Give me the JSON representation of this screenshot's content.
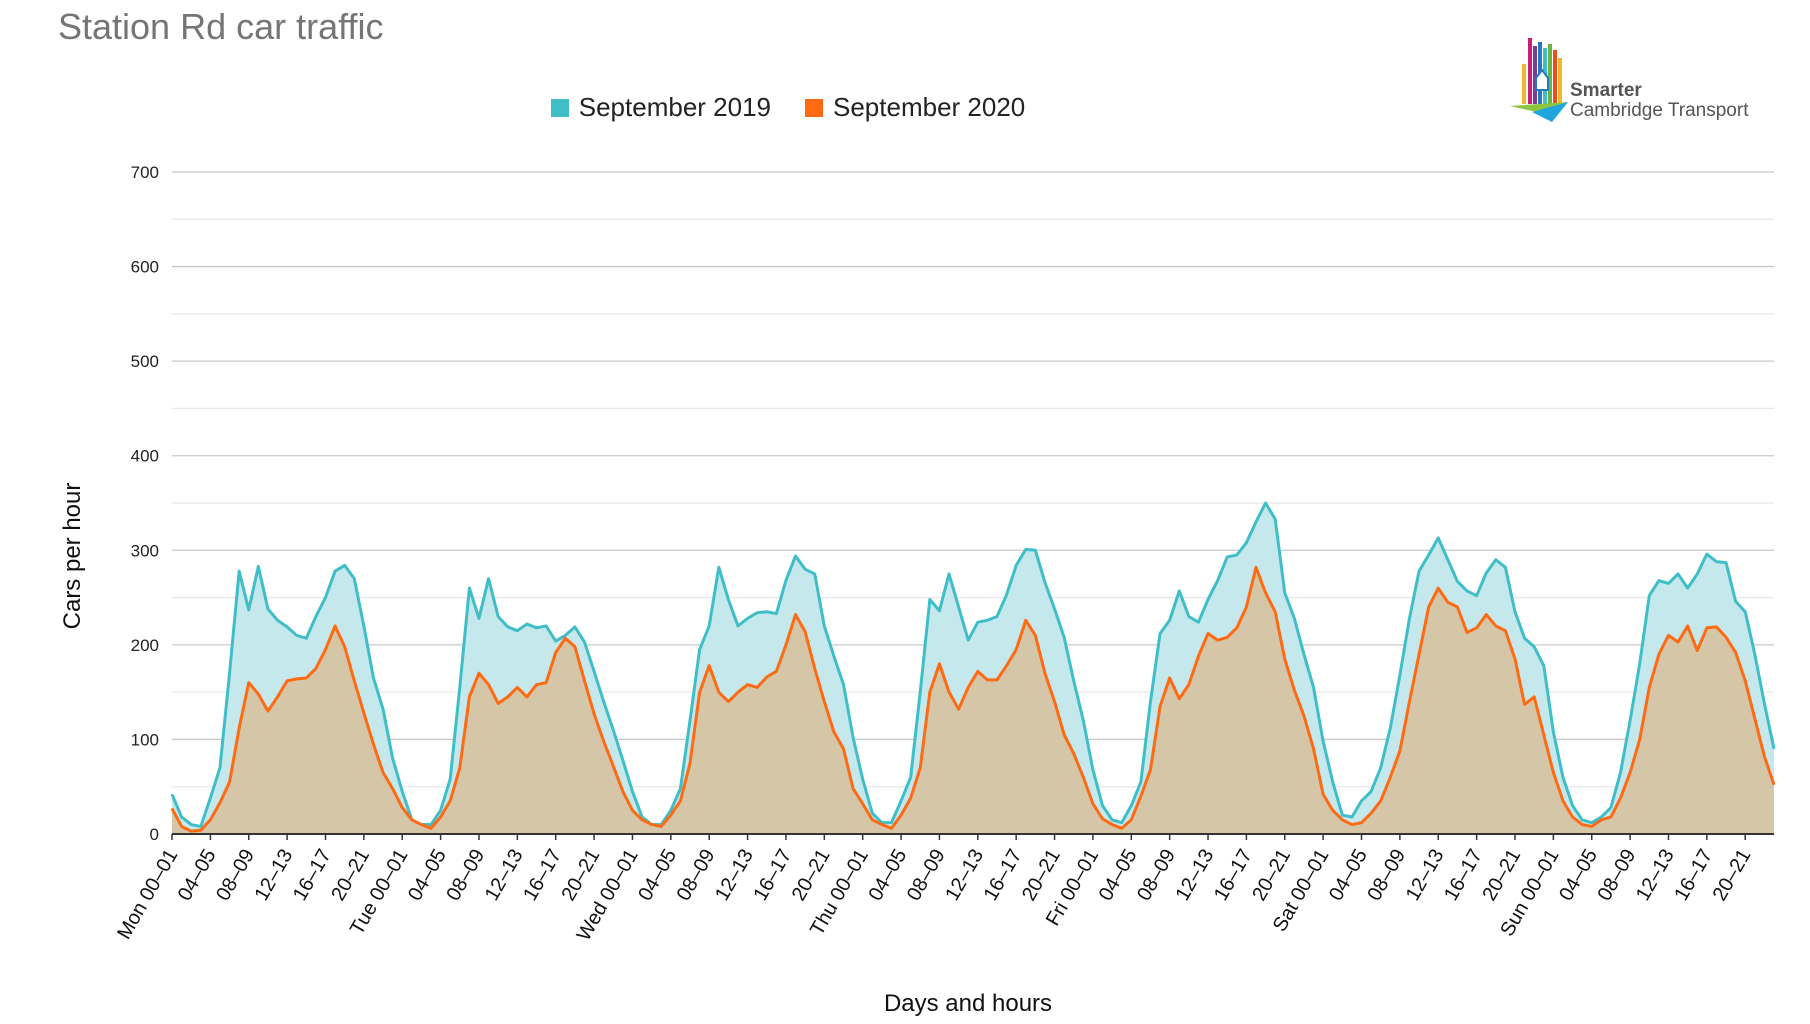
{
  "chart_data": {
    "type": "area",
    "title": "Station Rd car traffic",
    "xlabel": "Days and hours",
    "ylabel": "Cars per hour",
    "ylim": [
      0,
      700
    ],
    "yticks": [
      0,
      100,
      200,
      300,
      400,
      500,
      600,
      700
    ],
    "legend_position": "top-center",
    "grid": true,
    "x_tick_labels": [
      "Mon 00–01",
      "04–05",
      "08–09",
      "12–13",
      "16–17",
      "20–21",
      "Tue 00–01",
      "04–05",
      "08–09",
      "12–13",
      "16–17",
      "20–21",
      "Wed 00–01",
      "04–05",
      "08–09",
      "12–13",
      "16–17",
      "20–21",
      "Thu 00–01",
      "04–05",
      "08–09",
      "12–13",
      "16–17",
      "20–21",
      "Fri 00–01",
      "04–05",
      "08–09",
      "12–13",
      "16–17",
      "20–21",
      "Sat 00–01",
      "04–05",
      "08–09",
      "12–13",
      "16–17",
      "20–21",
      "Sun 00–01",
      "04–05",
      "08–09",
      "12–13",
      "16–17",
      "20–21"
    ],
    "series": [
      {
        "name": "September 2019",
        "color": "#3fbec8",
        "fill": "#c5e8ec",
        "values": [
          42,
          18,
          10,
          8,
          38,
          70,
          170,
          278,
          237,
          283,
          238,
          226,
          219,
          210,
          207,
          230,
          250,
          278,
          284,
          270,
          220,
          165,
          132,
          80,
          45,
          15,
          10,
          10,
          25,
          58,
          155,
          260,
          228,
          270,
          230,
          219,
          215,
          222,
          218,
          220,
          204,
          210,
          219,
          203,
          172,
          140,
          110,
          78,
          45,
          18,
          10,
          10,
          25,
          48,
          120,
          195,
          220,
          282,
          248,
          220,
          228,
          234,
          235,
          233,
          268,
          294,
          280,
          275,
          220,
          188,
          158,
          102,
          58,
          22,
          12,
          12,
          35,
          60,
          150,
          248,
          236,
          275,
          240,
          205,
          224,
          226,
          230,
          253,
          284,
          301,
          300,
          266,
          238,
          208,
          162,
          120,
          68,
          30,
          15,
          12,
          30,
          55,
          140,
          212,
          226,
          257,
          230,
          224,
          248,
          268,
          293,
          295,
          308,
          330,
          350,
          333,
          255,
          228,
          190,
          155,
          98,
          55,
          20,
          18,
          35,
          45,
          70,
          112,
          168,
          228,
          278,
          295,
          313,
          290,
          267,
          257,
          252,
          276,
          290,
          282,
          235,
          207,
          198,
          178,
          108,
          60,
          30,
          15,
          12,
          18,
          28,
          65,
          120,
          180,
          252,
          268,
          265,
          275,
          260,
          275,
          296,
          288,
          287,
          246,
          235,
          190,
          138,
          90
        ]
      },
      {
        "name": "September 2020",
        "color": "#ff6a13",
        "fill": "#d6c4a4",
        "values": [
          27,
          8,
          3,
          4,
          15,
          33,
          55,
          112,
          160,
          148,
          130,
          145,
          162,
          164,
          165,
          175,
          195,
          220,
          198,
          162,
          128,
          95,
          65,
          48,
          28,
          15,
          10,
          6,
          18,
          35,
          70,
          145,
          170,
          158,
          138,
          145,
          155,
          145,
          158,
          160,
          192,
          207,
          198,
          162,
          127,
          98,
          72,
          45,
          25,
          15,
          10,
          8,
          20,
          35,
          75,
          150,
          178,
          150,
          140,
          150,
          158,
          155,
          166,
          172,
          200,
          232,
          214,
          175,
          140,
          108,
          90,
          48,
          32,
          15,
          10,
          6,
          20,
          38,
          70,
          150,
          180,
          150,
          132,
          155,
          172,
          163,
          163,
          178,
          195,
          226,
          210,
          170,
          140,
          105,
          85,
          60,
          32,
          16,
          10,
          6,
          15,
          40,
          68,
          135,
          165,
          143,
          158,
          188,
          212,
          205,
          208,
          218,
          240,
          282,
          255,
          235,
          185,
          152,
          125,
          90,
          42,
          25,
          15,
          10,
          12,
          22,
          35,
          60,
          88,
          140,
          190,
          240,
          260,
          245,
          240,
          213,
          218,
          232,
          220,
          215,
          185,
          137,
          145,
          105,
          65,
          35,
          18,
          10,
          8,
          15,
          18,
          38,
          65,
          100,
          155,
          190,
          210,
          203,
          220,
          194,
          218,
          219,
          208,
          192,
          162,
          122,
          82,
          52
        ]
      }
    ]
  },
  "logo": {
    "line1": "Smarter",
    "line2": "Cambridge Transport"
  }
}
